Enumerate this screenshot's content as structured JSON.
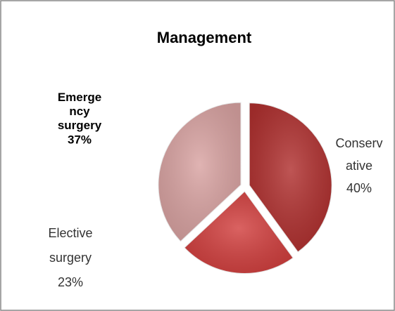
{
  "chart_data": {
    "type": "pie",
    "title": "Management",
    "categories": [
      "Conservative",
      "Elective surgery",
      "Emergency surgery"
    ],
    "values": [
      40,
      23,
      37
    ],
    "value_labels": [
      "40%",
      "23%",
      "37%"
    ],
    "colors": [
      "#b0302f",
      "#d2403f",
      "#d9a3a2"
    ]
  }
}
